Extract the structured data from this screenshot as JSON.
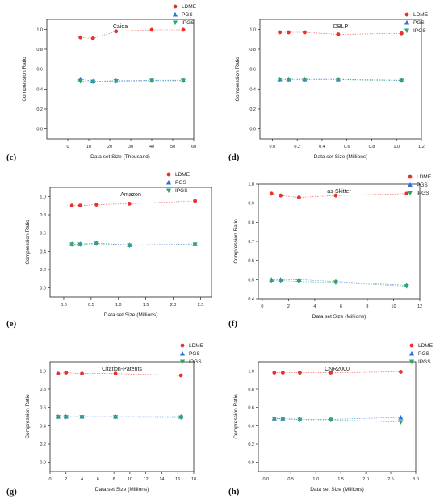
{
  "chart_data": [
    {
      "panel": "(c)",
      "type": "scatter",
      "title": "Caida",
      "xlabel": "Data set Size (Thousand)",
      "ylabel": "Compression Ratio",
      "xlim": [
        -10,
        60
      ],
      "ylim": [
        -0.1,
        1.1
      ],
      "xticks": [
        "0",
        "10",
        "20",
        "30",
        "40",
        "50",
        "60"
      ],
      "yticks": [
        "0.0",
        "0.2",
        "0.4",
        "0.6",
        "0.8",
        "1.0"
      ],
      "legend": "top-right",
      "grid": false,
      "series": [
        {
          "name": "LDME",
          "x": [
            6,
            12,
            23,
            40,
            55
          ],
          "y": [
            0.92,
            0.91,
            0.98,
            0.995,
            0.995
          ]
        },
        {
          "name": "PGS",
          "x": [
            6,
            12,
            23,
            40,
            55
          ],
          "y": [
            0.5,
            0.48,
            0.485,
            0.49,
            0.49
          ]
        },
        {
          "name": "IPGS",
          "x": [
            6,
            12,
            23,
            40,
            55
          ],
          "y": [
            0.48,
            0.475,
            0.48,
            0.485,
            0.485
          ]
        }
      ]
    },
    {
      "panel": "(d)",
      "type": "scatter",
      "title": "DBLP",
      "xlabel": "Data set Size (Millions)",
      "ylabel": "Compression Ratio",
      "xlim": [
        -0.1,
        1.2
      ],
      "ylim": [
        -0.1,
        1.1
      ],
      "xticks": [
        "0.0",
        "0.2",
        "0.4",
        "0.6",
        "0.8",
        "1.0",
        "1.2"
      ],
      "yticks": [
        "0.0",
        "0.2",
        "0.4",
        "0.6",
        "0.8",
        "1.0"
      ],
      "legend": "top-right",
      "grid": false,
      "series": [
        {
          "name": "LDME",
          "x": [
            0.06,
            0.13,
            0.26,
            0.53,
            1.04
          ],
          "y": [
            0.97,
            0.97,
            0.97,
            0.95,
            0.96
          ]
        },
        {
          "name": "PGS",
          "x": [
            0.06,
            0.13,
            0.26,
            0.53,
            1.04
          ],
          "y": [
            0.5,
            0.5,
            0.5,
            0.5,
            0.49
          ]
        },
        {
          "name": "IPGS",
          "x": [
            0.06,
            0.13,
            0.26,
            0.53,
            1.04
          ],
          "y": [
            0.495,
            0.495,
            0.495,
            0.495,
            0.485
          ]
        }
      ]
    },
    {
      "panel": "(e)",
      "type": "scatter",
      "title": "Amazon",
      "xlabel": "Data set Size (Millions)",
      "ylabel": "Compression Ratio",
      "xlim": [
        -0.25,
        2.7
      ],
      "ylim": [
        -0.1,
        1.1
      ],
      "xticks": [
        "0.0",
        "0.5",
        "1.0",
        "1.5",
        "2.0",
        "2.5"
      ],
      "yticks": [
        "0.0",
        "0.2",
        "0.4",
        "0.6",
        "0.8",
        "1.0"
      ],
      "legend": "top-right",
      "grid": false,
      "series": [
        {
          "name": "LDME",
          "x": [
            0.15,
            0.3,
            0.6,
            1.2,
            2.4
          ],
          "y": [
            0.9,
            0.9,
            0.91,
            0.92,
            0.95
          ]
        },
        {
          "name": "PGS",
          "x": [
            0.15,
            0.3,
            0.6,
            1.2,
            2.4
          ],
          "y": [
            0.48,
            0.48,
            0.49,
            0.47,
            0.48
          ]
        },
        {
          "name": "IPGS",
          "x": [
            0.15,
            0.3,
            0.6,
            1.2,
            2.4
          ],
          "y": [
            0.475,
            0.475,
            0.485,
            0.465,
            0.475
          ]
        }
      ]
    },
    {
      "panel": "(f)",
      "type": "scatter",
      "title": "as-Skitter",
      "xlabel": "Data set Size (Millions)",
      "ylabel": "Compression Ratio",
      "xlim": [
        -0.3,
        12
      ],
      "ylim": [
        0.4,
        1.0
      ],
      "xticks": [
        "0",
        "2",
        "4",
        "6",
        "8",
        "10",
        "12"
      ],
      "yticks": [
        "0.4",
        "0.5",
        "0.6",
        "0.7",
        "0.8",
        "0.9",
        "1.0"
      ],
      "legend": "top-right",
      "grid": false,
      "series": [
        {
          "name": "LDME",
          "x": [
            0.7,
            1.4,
            2.8,
            5.6,
            11
          ],
          "y": [
            0.95,
            0.94,
            0.93,
            0.94,
            0.95
          ]
        },
        {
          "name": "PGS",
          "x": [
            0.7,
            1.4,
            2.8,
            5.6,
            11
          ],
          "y": [
            0.5,
            0.5,
            0.5,
            0.49,
            0.47
          ]
        },
        {
          "name": "IPGS",
          "x": [
            0.7,
            1.4,
            2.8,
            5.6,
            11
          ],
          "y": [
            0.495,
            0.495,
            0.49,
            0.485,
            0.465
          ]
        }
      ]
    },
    {
      "panel": "(g)",
      "type": "scatter",
      "title": "Citation-Patents",
      "xlabel": "Data set Size (Millions)",
      "ylabel": "Compression Ratio",
      "xlim": [
        0,
        18
      ],
      "ylim": [
        -0.1,
        1.1
      ],
      "xticks": [
        "0",
        "2",
        "4",
        "6",
        "8",
        "10",
        "12",
        "14",
        "16",
        "18"
      ],
      "yticks": [
        "0.0",
        "0.2",
        "0.4",
        "0.6",
        "0.8",
        "1.0"
      ],
      "legend": "top-right",
      "grid": false,
      "series": [
        {
          "name": "LDME",
          "x": [
            1,
            2,
            4,
            8.2,
            16.4
          ],
          "y": [
            0.97,
            0.98,
            0.97,
            0.97,
            0.95
          ]
        },
        {
          "name": "PGS",
          "x": [
            1,
            2,
            4,
            8.2,
            16.4
          ],
          "y": [
            0.5,
            0.5,
            0.5,
            0.5,
            0.5
          ]
        },
        {
          "name": "IPGS",
          "x": [
            1,
            2,
            4,
            8.2,
            16.4
          ],
          "y": [
            0.495,
            0.495,
            0.495,
            0.495,
            0.49
          ]
        }
      ]
    },
    {
      "panel": "(h)",
      "type": "scatter",
      "title": "CNR2000",
      "xlabel": "Data set Size (Millions)",
      "ylabel": "Compression Ratio",
      "xlim": [
        -0.15,
        3.0
      ],
      "ylim": [
        -0.1,
        1.1
      ],
      "xticks": [
        "0.0",
        "0.5",
        "1.0",
        "1.5",
        "2.0",
        "2.5",
        "3.0"
      ],
      "yticks": [
        "0.0",
        "0.2",
        "0.4",
        "0.6",
        "0.8",
        "1.0"
      ],
      "legend": "top-right",
      "grid": false,
      "series": [
        {
          "name": "LDME",
          "x": [
            0.17,
            0.34,
            0.68,
            1.3,
            2.7
          ],
          "y": [
            0.98,
            0.98,
            0.98,
            0.98,
            0.99
          ]
        },
        {
          "name": "PGS",
          "x": [
            0.17,
            0.34,
            0.68,
            1.3,
            2.7
          ],
          "y": [
            0.48,
            0.48,
            0.47,
            0.47,
            0.49
          ]
        },
        {
          "name": "IPGS",
          "x": [
            0.17,
            0.34,
            0.68,
            1.3,
            2.7
          ],
          "y": [
            0.475,
            0.475,
            0.465,
            0.465,
            0.44
          ]
        }
      ]
    }
  ],
  "series_style": {
    "LDME": {
      "color": "#e8312f",
      "marker": "circle"
    },
    "PGS": {
      "color": "#2f6fe0",
      "marker": "triangle-up"
    },
    "IPGS": {
      "color": "#2fa56e",
      "marker": "triangle-down"
    }
  }
}
